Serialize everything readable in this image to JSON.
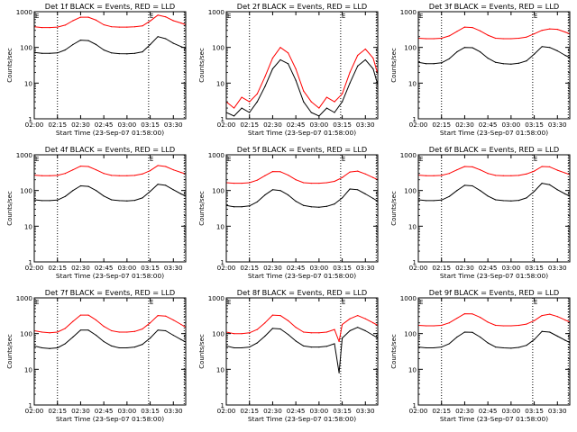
{
  "figure": {
    "colors": {
      "events": "#000000",
      "lld": "#ff0000",
      "axis": "#000000",
      "background": "#ffffff"
    },
    "x_ticks": [
      "02:00",
      "02:15",
      "02:30",
      "02:45",
      "03:00",
      "03:15",
      "03:30"
    ],
    "x_tick_minutes": [
      0,
      15,
      30,
      45,
      60,
      75,
      90
    ],
    "x_range_minutes": [
      0,
      98
    ],
    "y_ticks": [
      "1",
      "10",
      "100",
      "1000"
    ],
    "y_tick_values": [
      1,
      10,
      100,
      1000
    ],
    "y_range": [
      1,
      1000
    ],
    "y_scale": "log",
    "dotted_lines_minutes": [
      15,
      74,
      97
    ],
    "edge_markers": [
      {
        "label": "E",
        "minute": 0
      },
      {
        "label": "E",
        "minute": 74
      }
    ]
  },
  "chart_data": [
    {
      "type": "line",
      "title": "Det 1f BLACK = Events, RED = LLD",
      "xlabel": "Start Time (23-Sep-07 01:58:00)",
      "ylabel": "Counts/sec",
      "x": [
        0,
        5,
        10,
        15,
        20,
        25,
        30,
        35,
        40,
        45,
        50,
        55,
        60,
        65,
        70,
        75,
        80,
        85,
        90,
        95,
        98
      ],
      "series": [
        {
          "name": "LLD",
          "color": "#ff0000",
          "values": [
            380,
            360,
            360,
            370,
            420,
            560,
            700,
            700,
            580,
            430,
            380,
            370,
            370,
            380,
            400,
            550,
            800,
            720,
            560,
            480,
            430
          ]
        },
        {
          "name": "Events",
          "color": "#000000",
          "values": [
            72,
            68,
            68,
            70,
            85,
            120,
            160,
            155,
            120,
            85,
            70,
            67,
            66,
            68,
            75,
            120,
            200,
            175,
            130,
            105,
            95
          ]
        }
      ]
    },
    {
      "type": "line",
      "title": "Det 2f BLACK = Events, RED = LLD",
      "xlabel": "Start Time (23-Sep-07 01:58:00)",
      "ylabel": "Counts/sec",
      "x": [
        0,
        5,
        10,
        15,
        20,
        25,
        30,
        35,
        40,
        45,
        50,
        55,
        60,
        65,
        70,
        75,
        80,
        85,
        90,
        95,
        98
      ],
      "series": [
        {
          "name": "LLD",
          "color": "#ff0000",
          "values": [
            3,
            2,
            4,
            3,
            5,
            15,
            50,
            100,
            70,
            25,
            6,
            3,
            2,
            4,
            3,
            5,
            20,
            60,
            90,
            50,
            18
          ]
        },
        {
          "name": "Events",
          "color": "#000000",
          "values": [
            1.5,
            1.2,
            2,
            1.5,
            3,
            8,
            25,
            45,
            35,
            12,
            3,
            1.5,
            1.2,
            2,
            1.5,
            3,
            10,
            30,
            45,
            25,
            9
          ]
        }
      ]
    },
    {
      "type": "line",
      "title": "Det 3f BLACK = Events, RED = LLD",
      "xlabel": "Start Time (23-Sep-07 01:58:00)",
      "ylabel": "Counts/sec",
      "x": [
        0,
        5,
        10,
        15,
        20,
        25,
        30,
        35,
        40,
        45,
        50,
        55,
        60,
        65,
        70,
        75,
        80,
        85,
        90,
        95,
        98
      ],
      "series": [
        {
          "name": "LLD",
          "color": "#ff0000",
          "values": [
            180,
            175,
            175,
            180,
            210,
            280,
            370,
            360,
            290,
            220,
            180,
            175,
            175,
            180,
            195,
            240,
            300,
            330,
            320,
            270,
            240
          ]
        },
        {
          "name": "Events",
          "color": "#000000",
          "values": [
            38,
            35,
            35,
            37,
            48,
            75,
            100,
            98,
            75,
            50,
            38,
            35,
            34,
            36,
            42,
            65,
            105,
            100,
            80,
            60,
            52
          ]
        }
      ]
    },
    {
      "type": "line",
      "title": "Det 4f BLACK = Events, RED = LLD",
      "xlabel": "Start Time (23-Sep-07 01:58:00)",
      "ylabel": "Counts/sec",
      "x": [
        0,
        5,
        10,
        15,
        20,
        25,
        30,
        35,
        40,
        45,
        50,
        55,
        60,
        65,
        70,
        75,
        80,
        85,
        90,
        95,
        98
      ],
      "series": [
        {
          "name": "LLD",
          "color": "#ff0000",
          "values": [
            270,
            260,
            260,
            265,
            300,
            380,
            480,
            470,
            380,
            300,
            265,
            260,
            260,
            265,
            290,
            360,
            500,
            470,
            380,
            320,
            290
          ]
        },
        {
          "name": "Events",
          "color": "#000000",
          "values": [
            55,
            52,
            52,
            54,
            68,
            100,
            135,
            130,
            100,
            70,
            55,
            52,
            51,
            53,
            62,
            95,
            150,
            140,
            105,
            80,
            70
          ]
        }
      ]
    },
    {
      "type": "line",
      "title": "Det 5f BLACK = Events, RED = LLD",
      "xlabel": "Start Time (23-Sep-07 01:58:00)",
      "ylabel": "Counts/sec",
      "x": [
        0,
        5,
        10,
        15,
        20,
        25,
        30,
        35,
        40,
        45,
        50,
        55,
        60,
        65,
        70,
        75,
        80,
        85,
        90,
        95,
        98
      ],
      "series": [
        {
          "name": "LLD",
          "color": "#ff0000",
          "values": [
            165,
            160,
            160,
            165,
            195,
            260,
            340,
            335,
            270,
            200,
            165,
            160,
            160,
            165,
            180,
            230,
            330,
            350,
            290,
            230,
            200
          ]
        },
        {
          "name": "Events",
          "color": "#000000",
          "values": [
            38,
            35,
            35,
            37,
            48,
            75,
            105,
            100,
            75,
            50,
            38,
            35,
            34,
            36,
            42,
            62,
            110,
            105,
            80,
            60,
            50
          ]
        }
      ]
    },
    {
      "type": "line",
      "title": "Det 6f BLACK = Events, RED = LLD",
      "xlabel": "Start Time (23-Sep-07 01:58:00)",
      "ylabel": "Counts/sec",
      "x": [
        0,
        5,
        10,
        15,
        20,
        25,
        30,
        35,
        40,
        45,
        50,
        55,
        60,
        65,
        70,
        75,
        80,
        85,
        90,
        95,
        98
      ],
      "series": [
        {
          "name": "LLD",
          "color": "#ff0000",
          "values": [
            270,
            260,
            260,
            265,
            300,
            380,
            470,
            460,
            380,
            300,
            265,
            260,
            260,
            265,
            290,
            350,
            470,
            460,
            370,
            310,
            280
          ]
        },
        {
          "name": "Events",
          "color": "#000000",
          "values": [
            55,
            52,
            52,
            54,
            68,
            100,
            140,
            135,
            100,
            70,
            55,
            52,
            51,
            53,
            62,
            95,
            160,
            145,
            105,
            80,
            70
          ]
        }
      ]
    },
    {
      "type": "line",
      "title": "Det 7f BLACK = Events, RED = LLD",
      "xlabel": "Start Time (23-Sep-07 01:58:00)",
      "ylabel": "Counts/sec",
      "x": [
        0,
        5,
        10,
        15,
        20,
        25,
        30,
        35,
        40,
        45,
        50,
        55,
        60,
        65,
        70,
        75,
        80,
        85,
        90,
        95,
        98
      ],
      "series": [
        {
          "name": "LLD",
          "color": "#ff0000",
          "values": [
            120,
            110,
            105,
            110,
            140,
            220,
            330,
            330,
            240,
            160,
            120,
            110,
            110,
            115,
            135,
            200,
            320,
            310,
            240,
            180,
            150
          ]
        },
        {
          "name": "Events",
          "color": "#000000",
          "values": [
            45,
            40,
            38,
            40,
            52,
            80,
            125,
            125,
            90,
            60,
            45,
            40,
            40,
            42,
            50,
            75,
            125,
            120,
            90,
            68,
            58
          ]
        }
      ]
    },
    {
      "type": "line",
      "title": "Det 8f BLACK = Events, RED = LLD",
      "xlabel": "Start Time (23-Sep-07 01:58:00)",
      "ylabel": "Counts/sec",
      "x": [
        0,
        5,
        10,
        15,
        20,
        25,
        30,
        35,
        40,
        45,
        50,
        55,
        60,
        65,
        70,
        73,
        75,
        80,
        85,
        90,
        95,
        98
      ],
      "series": [
        {
          "name": "LLD",
          "color": "#ff0000",
          "values": [
            110,
            100,
            100,
            105,
            130,
            200,
            330,
            320,
            230,
            150,
            110,
            105,
            105,
            110,
            130,
            60,
            180,
            260,
            320,
            260,
            200,
            170
          ]
        },
        {
          "name": "Events",
          "color": "#000000",
          "values": [
            45,
            40,
            40,
            42,
            55,
            85,
            140,
            135,
            95,
            62,
            45,
            42,
            42,
            44,
            52,
            8,
            75,
            120,
            150,
            120,
            90,
            75
          ]
        }
      ]
    },
    {
      "type": "line",
      "title": "Det 9f BLACK = Events, RED = LLD",
      "xlabel": "Start Time (23-Sep-07 01:58:00)",
      "ylabel": "Counts/sec",
      "x": [
        0,
        5,
        10,
        15,
        20,
        25,
        30,
        35,
        40,
        45,
        50,
        55,
        60,
        65,
        70,
        75,
        80,
        85,
        90,
        95,
        98
      ],
      "series": [
        {
          "name": "LLD",
          "color": "#ff0000",
          "values": [
            170,
            165,
            165,
            170,
            200,
            270,
            360,
            355,
            285,
            210,
            170,
            165,
            165,
            170,
            185,
            230,
            320,
            350,
            300,
            240,
            210
          ]
        },
        {
          "name": "Events",
          "color": "#000000",
          "values": [
            42,
            40,
            40,
            42,
            52,
            80,
            110,
            108,
            80,
            55,
            42,
            40,
            39,
            41,
            47,
            68,
            115,
            110,
            85,
            65,
            56
          ]
        }
      ]
    }
  ]
}
